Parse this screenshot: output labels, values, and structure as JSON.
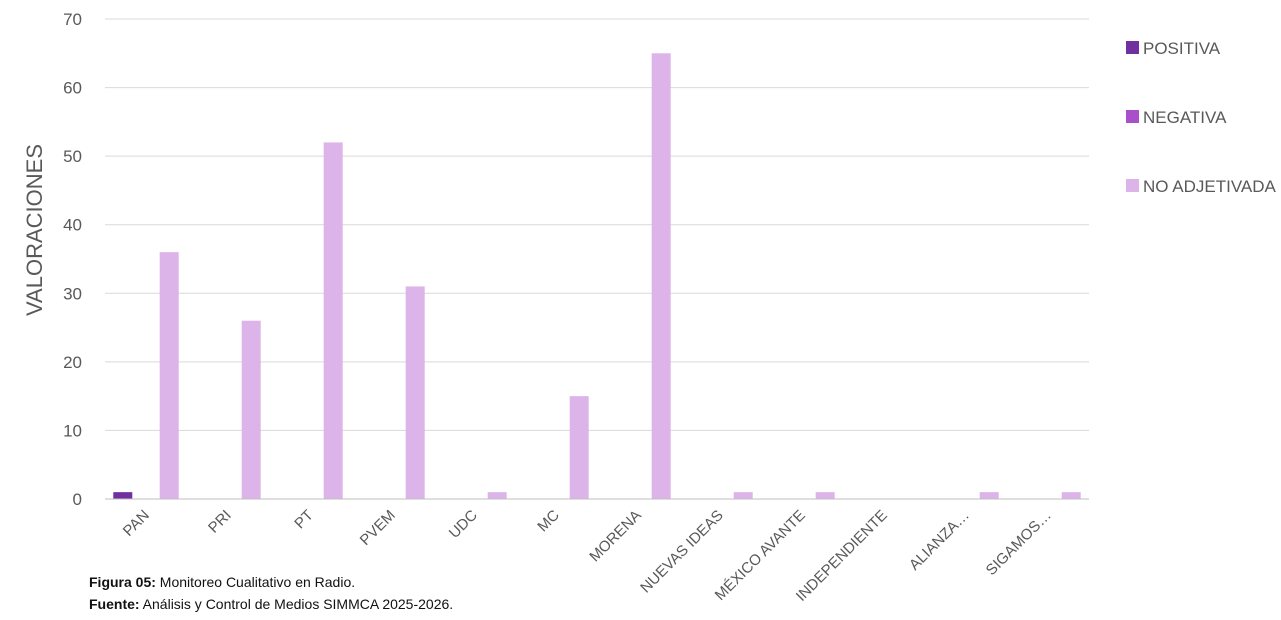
{
  "chart_data": {
    "type": "bar",
    "categories": [
      "PAN",
      "PRI",
      "PT",
      "PVEM",
      "UDC",
      "MC",
      "MORENA",
      "NUEVAS IDEAS",
      "MÉXICO AVANTE",
      "INDEPENDIENTE",
      "ALIANZA…",
      "SIGAMOS…"
    ],
    "series": [
      {
        "name": "POSITIVA",
        "color": "#7030a0",
        "values": [
          1,
          0,
          0,
          0,
          0,
          0,
          0,
          0,
          0,
          0,
          0,
          0
        ]
      },
      {
        "name": "NEGATIVA",
        "color": "#a94fc9",
        "values": [
          0,
          0,
          0,
          0,
          0,
          0,
          0,
          0,
          0,
          0,
          0,
          0
        ]
      },
      {
        "name": "NO ADJETIVADA",
        "color": "#dcb4ea",
        "values": [
          36,
          26,
          52,
          31,
          1,
          15,
          65,
          1,
          1,
          0,
          1,
          1
        ]
      }
    ],
    "ylabel": "VALORACIONES",
    "xlabel": "",
    "ylim": [
      0,
      70
    ],
    "yticks": [
      0,
      10,
      20,
      30,
      40,
      50,
      60,
      70
    ],
    "grid": true,
    "legend": "right"
  },
  "caption": {
    "line1_label": "Figura 05:",
    "line1_text": " Monitoreo Cualitativo en Radio.",
    "line2_label": "Fuente:",
    "line2_text": " Análisis y Control de Medios SIMMCA 2025-2026."
  }
}
